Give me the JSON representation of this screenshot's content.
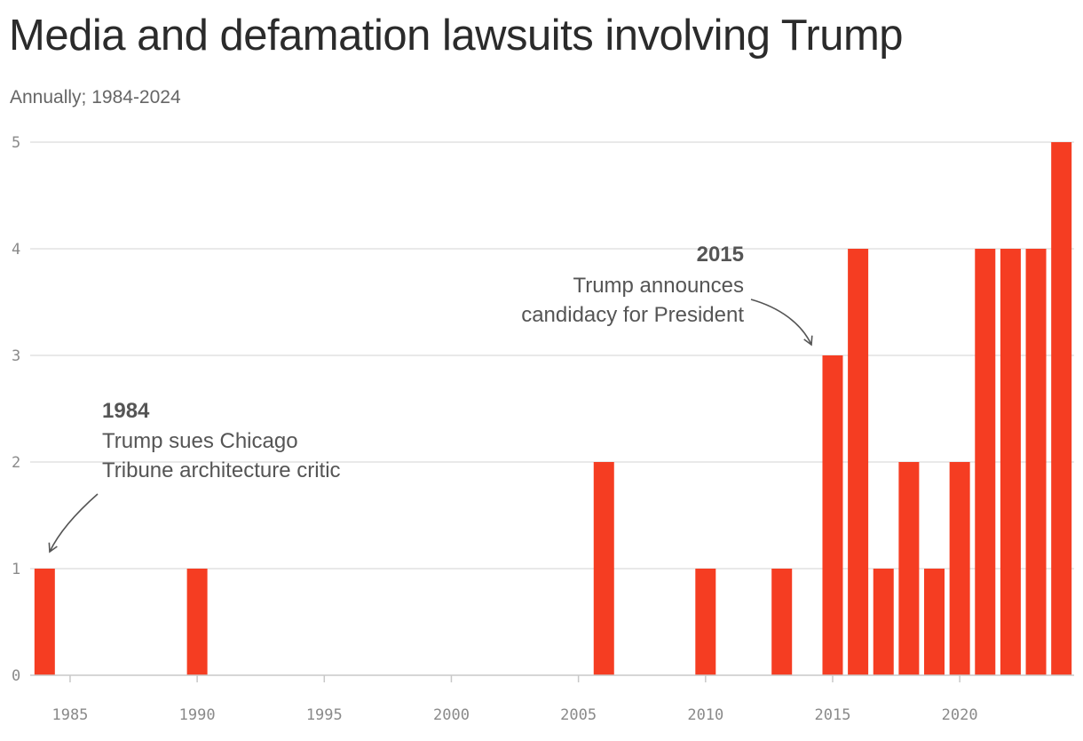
{
  "chart_data": {
    "type": "bar",
    "title": "Media and defamation lawsuits involving Trump",
    "subtitle": "Annually; 1984-2024",
    "x": [
      1984,
      1990,
      2006,
      2010,
      2013,
      2015,
      2016,
      2017,
      2018,
      2019,
      2020,
      2021,
      2022,
      2023,
      2024
    ],
    "values": [
      1,
      1,
      2,
      1,
      1,
      3,
      4,
      1,
      2,
      1,
      2,
      4,
      4,
      4,
      5
    ],
    "xlim": [
      1983.5,
      2024.5
    ],
    "ylim": [
      0,
      5
    ],
    "x_ticks": [
      1985,
      1990,
      1995,
      2000,
      2005,
      2010,
      2015,
      2020
    ],
    "y_ticks": [
      0,
      1,
      2,
      3,
      4,
      5
    ],
    "grid": true,
    "bar_color": "#f53d22",
    "annotations": [
      {
        "year": 1984,
        "title": "1984",
        "lines": [
          "Trump sues Chicago",
          "Tribune architecture critic"
        ]
      },
      {
        "year": 2015,
        "title": "2015",
        "lines": [
          "Trump announces",
          "candidacy for President"
        ]
      }
    ]
  }
}
